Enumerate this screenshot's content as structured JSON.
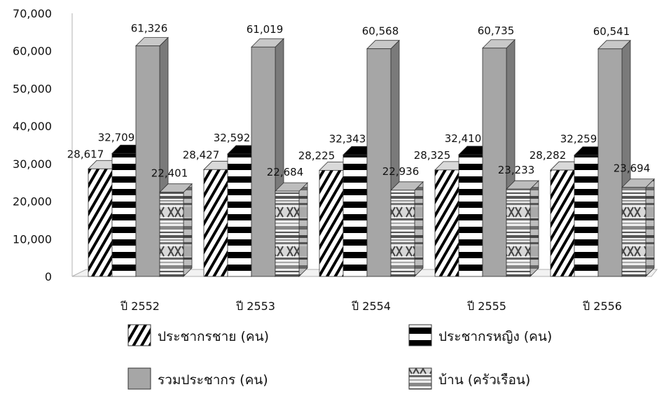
{
  "chart_data": {
    "type": "bar",
    "style": "3d-clustered-column",
    "title": "",
    "xlabel": "",
    "ylabel": "",
    "ylim": [
      0,
      70000
    ],
    "yticks": [
      "0",
      "10,000",
      "20,000",
      "30,000",
      "40,000",
      "50,000",
      "60,000",
      "70,000"
    ],
    "ytick_values": [
      0,
      10000,
      20000,
      30000,
      40000,
      50000,
      60000,
      70000
    ],
    "grid": false,
    "legend_position": "bottom",
    "categories": [
      "ปี 2552",
      "ปี 2553",
      "ปี 2554",
      "ปี 2555",
      "ปี 2556"
    ],
    "series": [
      {
        "name": "ประชากรชาย (คน)",
        "pattern": "diagonal-stripes",
        "values": [
          28617,
          28427,
          28225,
          28325,
          28282
        ],
        "labels": [
          "28,617",
          "28,427",
          "28,225",
          "28,325",
          "28,282"
        ]
      },
      {
        "name": "ประชากรหญิง (คน)",
        "pattern": "horizontal-stripes",
        "values": [
          32709,
          32592,
          32343,
          32410,
          32259
        ],
        "labels": [
          "32,709",
          "32,592",
          "32,343",
          "32,410",
          "32,259"
        ]
      },
      {
        "name": "รวมประชากร (คน)",
        "pattern": "solid-gray",
        "values": [
          61326,
          61019,
          60568,
          60735,
          60541
        ],
        "labels": [
          "61,326",
          "61,019",
          "60,568",
          "60,735",
          "60,541"
        ]
      },
      {
        "name": "บ้าน (ครัวเรือน)",
        "pattern": "textile",
        "values": [
          22401,
          22684,
          22936,
          23233,
          23694
        ],
        "labels": [
          "22,401",
          "22,684",
          "22,936",
          "23,233",
          "23,694"
        ]
      }
    ],
    "colors": {
      "total_front": "#a6a6a6",
      "total_side": "#7a7a7a",
      "total_top": "#c8c8c8",
      "stripe_dark": "#000000",
      "floor": "#f2f2f2",
      "axis": "#b0b0b0"
    }
  }
}
